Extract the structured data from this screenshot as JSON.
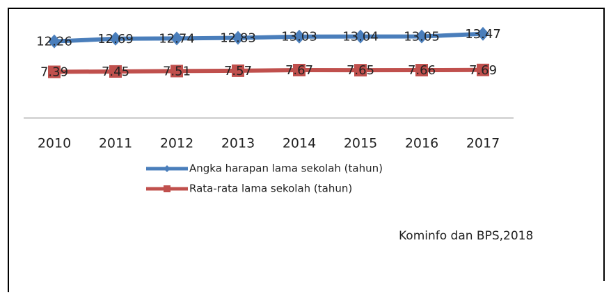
{
  "chart_data": {
    "type": "line",
    "categories": [
      "2010",
      "2011",
      "2012",
      "2013",
      "2014",
      "2015",
      "2016",
      "2017"
    ],
    "series": [
      {
        "name": "Angka harapan lama sekolah (tahun)",
        "color": "#4a7ebb",
        "marker": "diamond",
        "values": [
          12.26,
          12.69,
          12.74,
          12.83,
          13.03,
          13.04,
          13.05,
          13.47
        ]
      },
      {
        "name": "Rata-rata lama sekolah (tahun)",
        "color": "#c0504d",
        "marker": "square",
        "values": [
          7.39,
          7.45,
          7.51,
          7.57,
          7.67,
          7.65,
          7.66,
          7.69
        ]
      }
    ],
    "ylim": [
      0,
      16
    ],
    "source": "Kominfo dan BPS,2018"
  }
}
